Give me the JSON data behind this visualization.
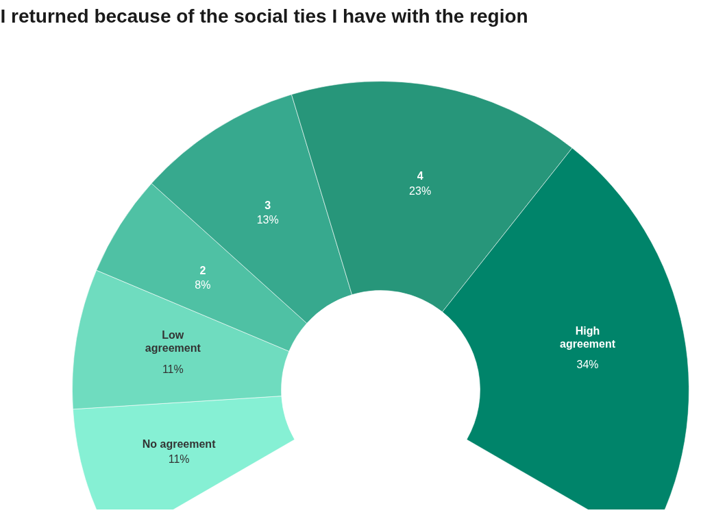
{
  "chart_data": {
    "type": "donut",
    "title": "I returned because of the social ties I have with the region",
    "categories": [
      "No agreement",
      "Low agreement",
      "2",
      "3",
      "4",
      "High agreement"
    ],
    "values": [
      11,
      11,
      8,
      13,
      23,
      34
    ],
    "value_labels": [
      "11%",
      "11%",
      "8%",
      "13%",
      "23%",
      "34%"
    ],
    "colors": [
      "#86f0d4",
      "#6fdcbf",
      "#4fc1a4",
      "#37a98e",
      "#27967a",
      "#00846a"
    ]
  }
}
